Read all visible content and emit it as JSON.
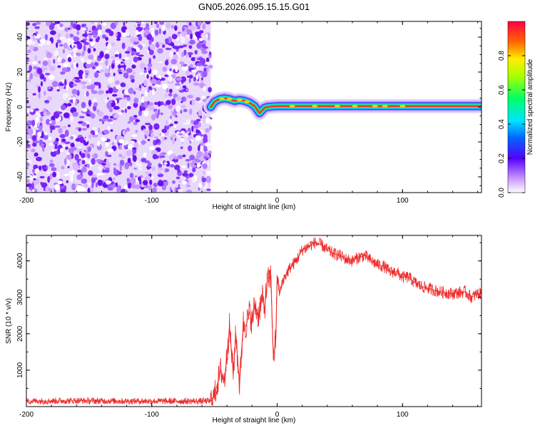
{
  "title": "GN05.2026.095.15.15.G01",
  "chart_data": [
    {
      "type": "heatmap",
      "name": "spectrogram",
      "title": "GN05.2026.095.15.15.G01",
      "xlabel": "Height of straight line (km)",
      "ylabel": "Frequency (Hz)",
      "xlim": [
        -200,
        163
      ],
      "ylim": [
        -49,
        49
      ],
      "xticks": [
        -200,
        -100,
        0,
        100
      ],
      "xtick_labels": [
        "-200",
        "-100",
        "0",
        "100"
      ],
      "yticks": [
        -40,
        -20,
        0,
        20,
        40
      ],
      "ytick_labels": [
        "-40",
        "-20",
        "0",
        "20",
        "40"
      ],
      "noise_region_x": [
        -200,
        -53
      ],
      "signal_track": {
        "x": [
          -53,
          -50,
          -46,
          -42,
          -38,
          -34,
          -30,
          -26,
          -22,
          -18,
          -16,
          -14,
          -12,
          -10,
          -8,
          -4,
          0,
          4,
          8,
          20,
          40,
          60,
          80,
          100,
          120,
          140,
          163
        ],
        "y": [
          0,
          3,
          4.5,
          5,
          4.5,
          3.5,
          4,
          3.5,
          2.5,
          0.5,
          -1.5,
          -3.5,
          -2,
          -0.5,
          0,
          0.3,
          0.5,
          0.5,
          0.5,
          0.5,
          0.5,
          0.5,
          0.5,
          0.5,
          0.5,
          0.5,
          0.5
        ]
      },
      "colorbar": {
        "label": "Normalized spectral amplitude",
        "range": [
          0,
          1
        ],
        "ticks": [
          0.0,
          0.2,
          0.4,
          0.6,
          0.8
        ],
        "tick_labels": [
          "0.0",
          "0.2",
          "0.4",
          "0.6",
          "0.8"
        ]
      }
    },
    {
      "type": "line",
      "name": "snr",
      "xlabel": "Height of straight line (km)",
      "ylabel": "SNR (10 * v/v)",
      "xlim": [
        -200,
        163
      ],
      "ylim": [
        0,
        4700
      ],
      "xticks": [
        -200,
        -100,
        0,
        100
      ],
      "xtick_labels": [
        "-200",
        "-100",
        "0",
        "100"
      ],
      "yticks": [
        1000,
        2000,
        3000,
        4000
      ],
      "ytick_labels": [
        "1000",
        "2000",
        "3000",
        "4000"
      ],
      "series": [
        {
          "name": "SNR",
          "color": "#ee2222",
          "x": [
            -200,
            -160,
            -120,
            -80,
            -60,
            -53,
            -50,
            -45,
            -42,
            -38,
            -35,
            -33,
            -30,
            -27,
            -25,
            -22,
            -20,
            -18,
            -15,
            -12,
            -10,
            -8,
            -5,
            -3,
            -1,
            0,
            2,
            5,
            10,
            15,
            20,
            25,
            30,
            35,
            40,
            45,
            50,
            55,
            60,
            65,
            70,
            75,
            80,
            85,
            90,
            95,
            100,
            105,
            110,
            115,
            120,
            130,
            140,
            150,
            155,
            160,
            163
          ],
          "y": [
            150,
            160,
            150,
            150,
            150,
            150,
            300,
            1000,
            700,
            2200,
            900,
            2000,
            600,
            2300,
            2200,
            2600,
            2300,
            2800,
            2500,
            3000,
            2700,
            3400,
            3600,
            1300,
            1900,
            3600,
            3100,
            3500,
            3800,
            4000,
            4300,
            4400,
            4500,
            4450,
            4300,
            4200,
            4150,
            4050,
            4000,
            4100,
            4150,
            4000,
            3900,
            3850,
            3700,
            3700,
            3550,
            3550,
            3400,
            3300,
            3250,
            3150,
            3100,
            3150,
            3000,
            3100,
            3100
          ]
        }
      ]
    }
  ]
}
